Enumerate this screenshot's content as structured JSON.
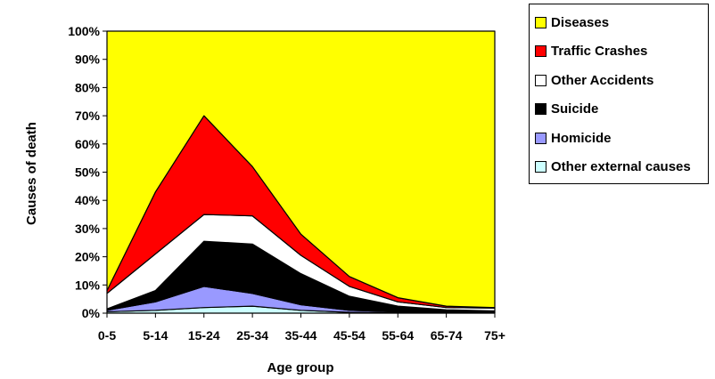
{
  "chart_data": {
    "type": "area",
    "stacked": true,
    "normalized_percent": true,
    "xlabel": "Age group",
    "ylabel": "Causes of death",
    "categories": [
      "0-5",
      "5-14",
      "15-24",
      "25-34",
      "35-44",
      "45-54",
      "55-64",
      "65-74",
      "75+"
    ],
    "y_ticks": [
      "0%",
      "10%",
      "20%",
      "30%",
      "40%",
      "50%",
      "60%",
      "70%",
      "80%",
      "90%",
      "100%"
    ],
    "ylim": [
      0,
      100
    ],
    "legend_position": "top-right",
    "series": [
      {
        "name": "Other external causes",
        "color": "#ccffff",
        "values": [
          0.5,
          1.0,
          2.0,
          2.5,
          1.0,
          0.3,
          0.2,
          0.1,
          0.1
        ]
      },
      {
        "name": "Homicide",
        "color": "#9999ff",
        "values": [
          0.5,
          3.0,
          7.5,
          4.5,
          2.0,
          0.7,
          0.3,
          0.2,
          0.1
        ]
      },
      {
        "name": "Suicide",
        "color": "#000000",
        "values": [
          0.5,
          4.0,
          16.0,
          17.5,
          11.0,
          5.0,
          2.0,
          0.9,
          0.6
        ]
      },
      {
        "name": "Other Accidents",
        "color": "#ffffff",
        "values": [
          5.5,
          13.0,
          9.5,
          10.0,
          6.5,
          3.5,
          1.5,
          0.8,
          1.0
        ]
      },
      {
        "name": "Traffic Crashes",
        "color": "#ff0000",
        "values": [
          1.0,
          22.0,
          35.0,
          17.5,
          7.5,
          3.5,
          1.5,
          0.5,
          0.2
        ]
      },
      {
        "name": "Diseases",
        "color": "#ffff00",
        "values": [
          92.0,
          57.0,
          30.0,
          48.0,
          72.0,
          87.0,
          94.5,
          97.5,
          98.0
        ]
      }
    ],
    "legend_order": [
      "Diseases",
      "Traffic Crashes",
      "Other Accidents",
      "Suicide",
      "Homicide",
      "Other external causes"
    ]
  }
}
